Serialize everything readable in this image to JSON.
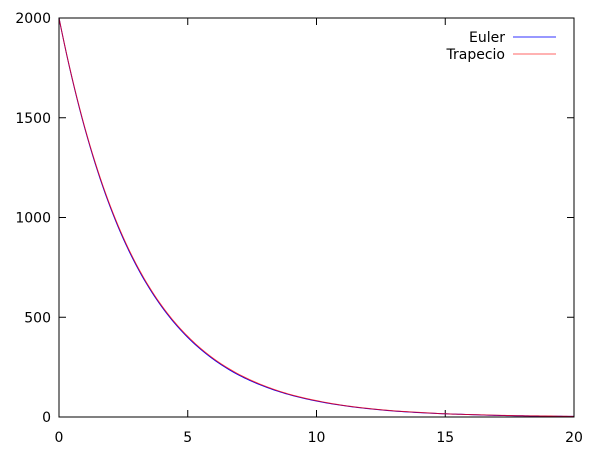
{
  "chart_data": {
    "type": "line",
    "title": "",
    "xlabel": "",
    "ylabel": "",
    "xlim": [
      0,
      20
    ],
    "ylim": [
      0,
      2000
    ],
    "xticks": [
      0,
      5,
      10,
      15,
      20
    ],
    "yticks": [
      0,
      500,
      1000,
      1500,
      2000
    ],
    "grid": false,
    "legend_position": "top-right",
    "x": [
      0,
      1,
      2,
      3,
      4,
      5,
      6,
      7,
      8,
      9,
      10,
      11,
      12,
      13,
      14,
      15,
      16,
      17,
      18,
      19,
      20
    ],
    "series": [
      {
        "name": "Euler",
        "color": "#0000ff",
        "values": [
          2000,
          1448,
          1049,
          760,
          551,
          399,
          289,
          209,
          152,
          110,
          80,
          58,
          42,
          30,
          22,
          16,
          12,
          8,
          6,
          4,
          3
        ]
      },
      {
        "name": "Trapecio",
        "color": "#ff0000",
        "values": [
          2000,
          1452,
          1055,
          766,
          556,
          404,
          293,
          213,
          155,
          112,
          82,
          59,
          43,
          31,
          23,
          16,
          12,
          9,
          6,
          5,
          3
        ]
      }
    ]
  }
}
